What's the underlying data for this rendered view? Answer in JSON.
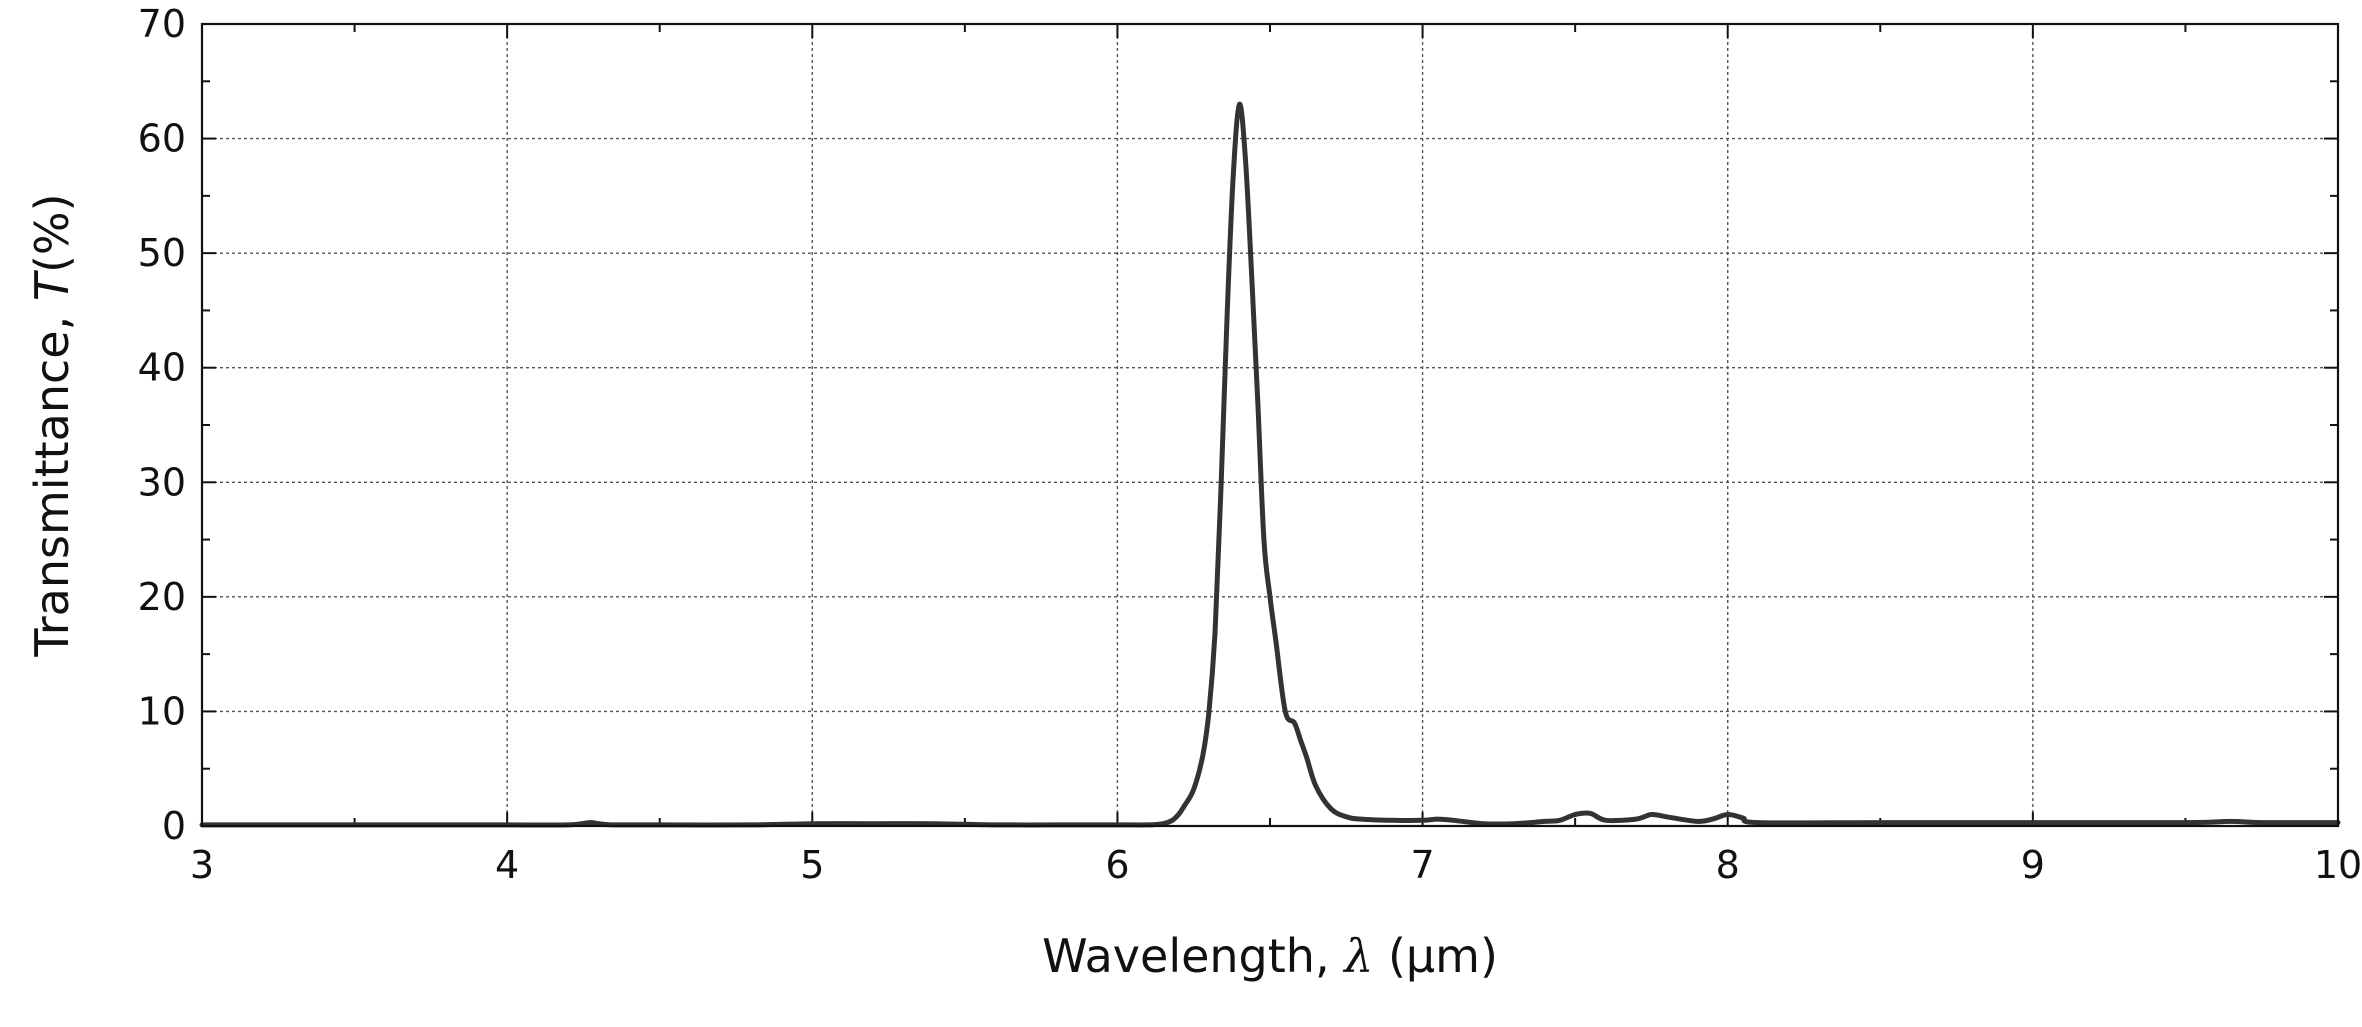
{
  "chart_data": {
    "type": "line",
    "title": "",
    "xlabel": "Wavelength, λ (μm)",
    "xlabel_parts": {
      "prefix": "Wavelength, ",
      "symbol": "λ",
      "suffix": " (μm)"
    },
    "ylabel": "Transmittance, T(%)",
    "ylabel_parts": {
      "prefix": "Transmittance, ",
      "symbol": "T",
      "suffix": "(%)"
    },
    "xlim": [
      3,
      10
    ],
    "ylim": [
      0,
      70
    ],
    "xticks": [
      3,
      4,
      5,
      6,
      7,
      8,
      9,
      10
    ],
    "xtick_labels": [
      "3",
      "4",
      "5",
      "6",
      "7",
      "8",
      "9",
      "10"
    ],
    "yticks": [
      0,
      10,
      20,
      30,
      40,
      50,
      60,
      70
    ],
    "ytick_labels": [
      "0",
      "10",
      "20",
      "30",
      "40",
      "50",
      "60",
      "70"
    ],
    "grid": true,
    "legend": false,
    "line_color": "#333333",
    "series": [
      {
        "x": [
          3.0,
          3.2,
          3.4,
          3.6,
          3.8,
          4.0,
          4.2,
          4.27,
          4.3,
          4.35,
          4.5,
          4.8,
          5.0,
          5.2,
          5.4,
          5.6,
          5.8,
          6.0,
          6.1,
          6.15,
          6.18,
          6.2,
          6.22,
          6.25,
          6.28,
          6.3,
          6.32,
          6.34,
          6.36,
          6.38,
          6.4,
          6.42,
          6.44,
          6.46,
          6.48,
          6.5,
          6.52,
          6.55,
          6.58,
          6.6,
          6.62,
          6.65,
          6.7,
          6.75,
          6.8,
          6.9,
          7.0,
          7.05,
          7.1,
          7.2,
          7.3,
          7.4,
          7.45,
          7.5,
          7.55,
          7.6,
          7.7,
          7.75,
          7.8,
          7.9,
          7.95,
          8.0,
          8.05,
          8.1,
          8.5,
          9.0,
          9.5,
          9.65,
          9.75,
          10.0
        ],
        "y": [
          0.1,
          0.1,
          0.1,
          0.1,
          0.1,
          0.1,
          0.1,
          0.3,
          0.2,
          0.1,
          0.1,
          0.1,
          0.2,
          0.2,
          0.2,
          0.1,
          0.1,
          0.1,
          0.1,
          0.2,
          0.5,
          1.0,
          1.8,
          3.2,
          6.2,
          10.0,
          17.0,
          30.0,
          45.0,
          57.0,
          63.0,
          58.0,
          48.0,
          37.0,
          25.0,
          20.0,
          16.0,
          10.0,
          9.0,
          7.5,
          6.0,
          3.5,
          1.5,
          0.8,
          0.6,
          0.5,
          0.5,
          0.6,
          0.5,
          0.2,
          0.2,
          0.4,
          0.5,
          1.0,
          1.1,
          0.5,
          0.6,
          1.0,
          0.8,
          0.4,
          0.6,
          1.0,
          0.7,
          0.3,
          0.3,
          0.3,
          0.3,
          0.4,
          0.3,
          0.3
        ]
      }
    ]
  }
}
